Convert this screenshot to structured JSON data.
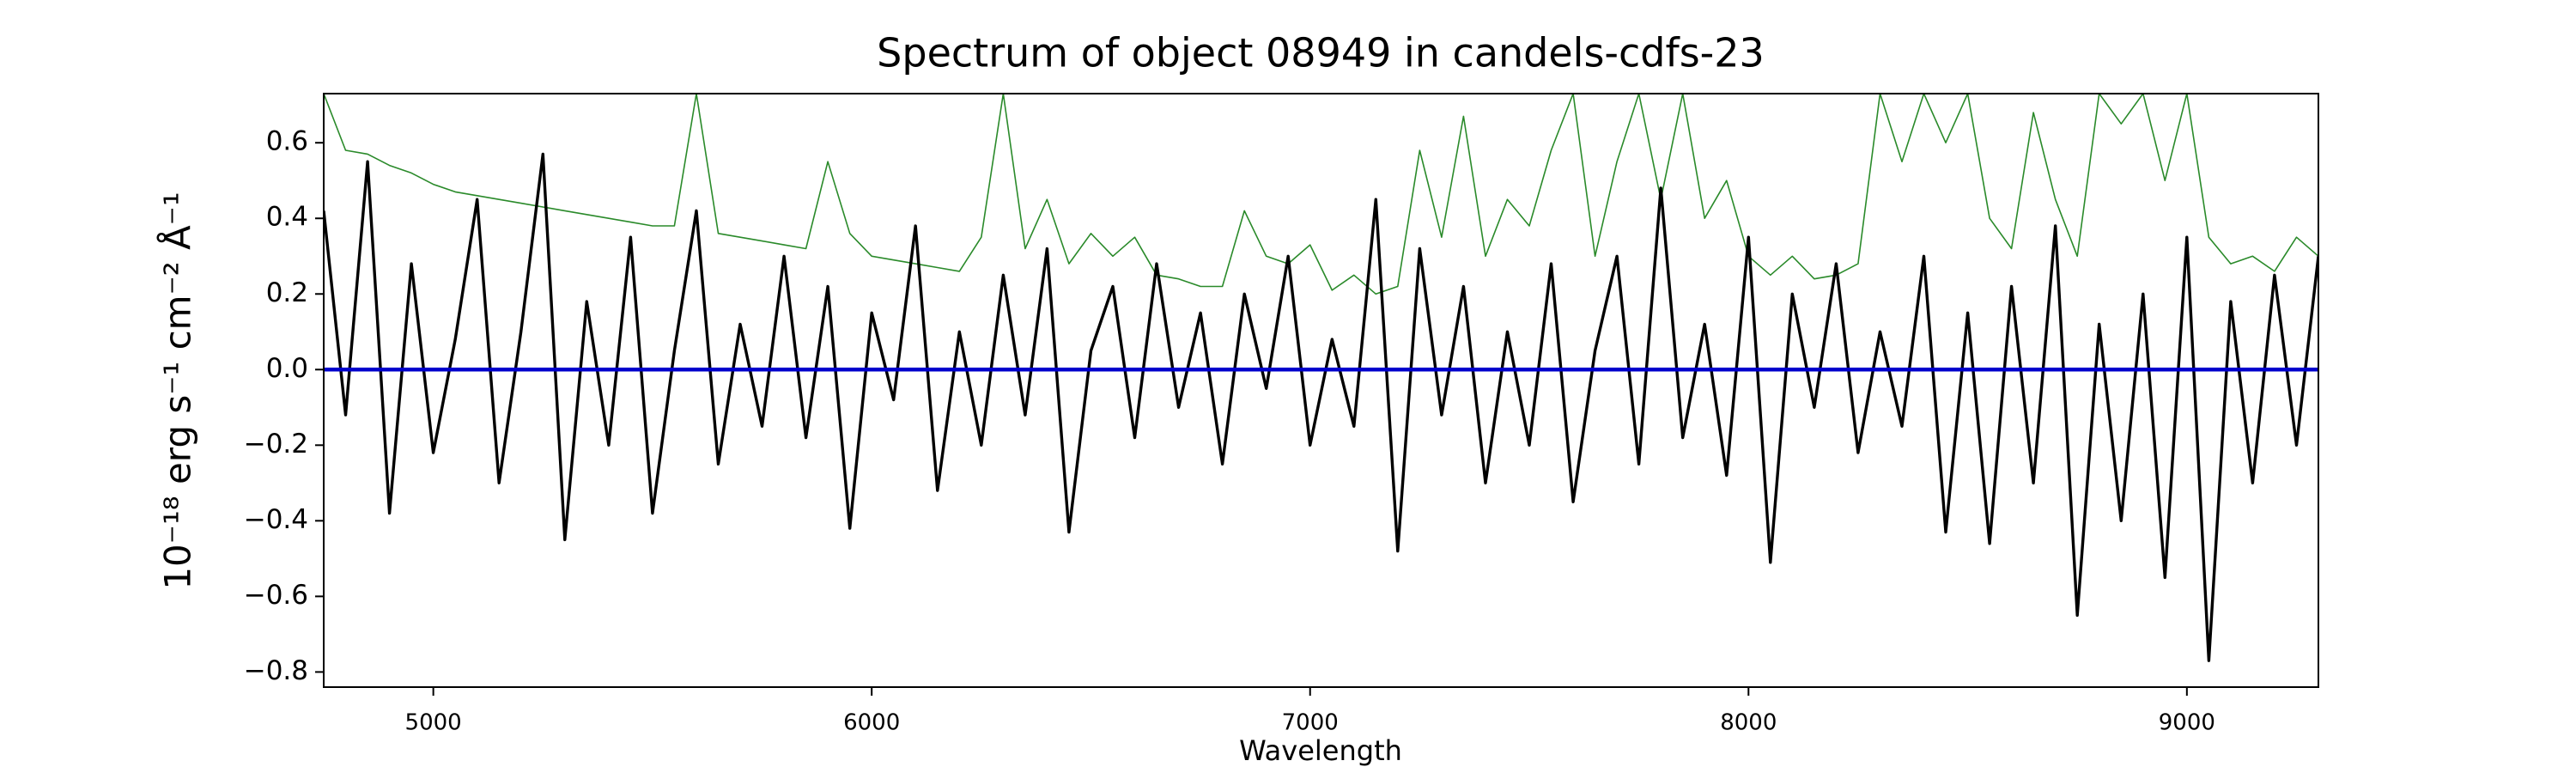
{
  "chart_data": {
    "type": "line",
    "title": "Spectrum of object 08949 in candels-cdfs-23",
    "x_label": "Wavelength",
    "y_label": "10⁻¹⁸ erg s⁻¹ cm⁻² Å⁻¹",
    "xlim": [
      4750,
      9300
    ],
    "ylim": [
      -0.84,
      0.73
    ],
    "xticks": [
      5000,
      6000,
      7000,
      8000,
      9000
    ],
    "yticks": [
      {
        "value": -0.8,
        "label": "−0.8"
      },
      {
        "value": -0.6,
        "label": "−0.6"
      },
      {
        "value": -0.4,
        "label": "−0.4"
      },
      {
        "value": -0.2,
        "label": "−0.2"
      },
      {
        "value": 0,
        "label": "0.0"
      },
      {
        "value": 0.2,
        "label": "0.2"
      },
      {
        "value": 0.4,
        "label": "0.4"
      },
      {
        "value": 0.6,
        "label": "0.6"
      }
    ],
    "grid": false,
    "series": [
      {
        "color": "#2a8a2a",
        "width": 1.6,
        "x": [
          4750,
          4800,
          4850,
          4900,
          4950,
          5000,
          5050,
          5100,
          5150,
          5200,
          5250,
          5300,
          5350,
          5400,
          5450,
          5500,
          5550,
          5600,
          5650,
          5700,
          5750,
          5800,
          5850,
          5900,
          5950,
          6000,
          6050,
          6100,
          6150,
          6200,
          6250,
          6300,
          6350,
          6400,
          6450,
          6500,
          6550,
          6600,
          6650,
          6700,
          6750,
          6800,
          6850,
          6900,
          6950,
          7000,
          7050,
          7100,
          7150,
          7200,
          7250,
          7300,
          7350,
          7400,
          7450,
          7500,
          7550,
          7600,
          7650,
          7700,
          7750,
          7800,
          7850,
          7900,
          7950,
          8000,
          8050,
          8100,
          8150,
          8200,
          8250,
          8300,
          8350,
          8400,
          8450,
          8500,
          8550,
          8600,
          8650,
          8700,
          8750,
          8800,
          8850,
          8900,
          8950,
          9000,
          9050,
          9100,
          9150,
          9200,
          9250,
          9300
        ],
        "values": [
          0.73,
          0.58,
          0.57,
          0.54,
          0.52,
          0.49,
          0.47,
          0.46,
          0.45,
          0.44,
          0.43,
          0.42,
          0.41,
          0.4,
          0.39,
          0.38,
          0.38,
          0.73,
          0.36,
          0.35,
          0.34,
          0.33,
          0.32,
          0.55,
          0.36,
          0.3,
          0.29,
          0.28,
          0.27,
          0.26,
          0.35,
          0.73,
          0.32,
          0.45,
          0.28,
          0.36,
          0.3,
          0.35,
          0.25,
          0.24,
          0.22,
          0.22,
          0.42,
          0.3,
          0.28,
          0.33,
          0.21,
          0.25,
          0.2,
          0.22,
          0.58,
          0.35,
          0.67,
          0.3,
          0.45,
          0.38,
          0.58,
          0.73,
          0.3,
          0.55,
          0.73,
          0.45,
          0.73,
          0.4,
          0.5,
          0.3,
          0.25,
          0.3,
          0.24,
          0.25,
          0.28,
          0.73,
          0.55,
          0.73,
          0.6,
          0.73,
          0.4,
          0.32,
          0.68,
          0.45,
          0.3,
          0.73,
          0.65,
          0.73,
          0.5,
          0.73,
          0.35,
          0.28,
          0.3,
          0.26,
          0.35,
          0.3
        ]
      },
      {
        "color": "#000000",
        "width": 3.4,
        "x": [
          4750,
          4800,
          4850,
          4900,
          4950,
          5000,
          5050,
          5100,
          5150,
          5200,
          5250,
          5300,
          5350,
          5400,
          5450,
          5500,
          5550,
          5600,
          5650,
          5700,
          5750,
          5800,
          5850,
          5900,
          5950,
          6000,
          6050,
          6100,
          6150,
          6200,
          6250,
          6300,
          6350,
          6400,
          6450,
          6500,
          6550,
          6600,
          6650,
          6700,
          6750,
          6800,
          6850,
          6900,
          6950,
          7000,
          7050,
          7100,
          7150,
          7200,
          7250,
          7300,
          7350,
          7400,
          7450,
          7500,
          7550,
          7600,
          7650,
          7700,
          7750,
          7800,
          7850,
          7900,
          7950,
          8000,
          8050,
          8100,
          8150,
          8200,
          8250,
          8300,
          8350,
          8400,
          8450,
          8500,
          8550,
          8600,
          8650,
          8700,
          8750,
          8800,
          8850,
          8900,
          8950,
          9000,
          9050,
          9100,
          9150,
          9200,
          9250,
          9300
        ],
        "values": [
          0.42,
          -0.12,
          0.55,
          -0.38,
          0.28,
          -0.22,
          0.08,
          0.45,
          -0.3,
          0.1,
          0.57,
          -0.45,
          0.18,
          -0.2,
          0.35,
          -0.38,
          0.05,
          0.42,
          -0.25,
          0.12,
          -0.15,
          0.3,
          -0.18,
          0.22,
          -0.42,
          0.15,
          -0.08,
          0.38,
          -0.32,
          0.1,
          -0.2,
          0.25,
          -0.12,
          0.32,
          -0.43,
          0.05,
          0.22,
          -0.18,
          0.28,
          -0.1,
          0.15,
          -0.25,
          0.2,
          -0.05,
          0.3,
          -0.2,
          0.08,
          -0.15,
          0.45,
          -0.48,
          0.32,
          -0.12,
          0.22,
          -0.3,
          0.1,
          -0.2,
          0.28,
          -0.35,
          0.05,
          0.3,
          -0.25,
          0.48,
          -0.18,
          0.12,
          -0.28,
          0.35,
          -0.51,
          0.2,
          -0.1,
          0.28,
          -0.22,
          0.1,
          -0.15,
          0.3,
          -0.43,
          0.15,
          -0.46,
          0.22,
          -0.3,
          0.38,
          -0.65,
          0.12,
          -0.4,
          0.2,
          -0.55,
          0.35,
          -0.77,
          0.18,
          -0.3,
          0.25,
          -0.2,
          0.3
        ]
      },
      {
        "color": "#0000cc",
        "width": 4.5,
        "x": [
          4750,
          9300
        ],
        "values": [
          0,
          0
        ]
      }
    ]
  }
}
